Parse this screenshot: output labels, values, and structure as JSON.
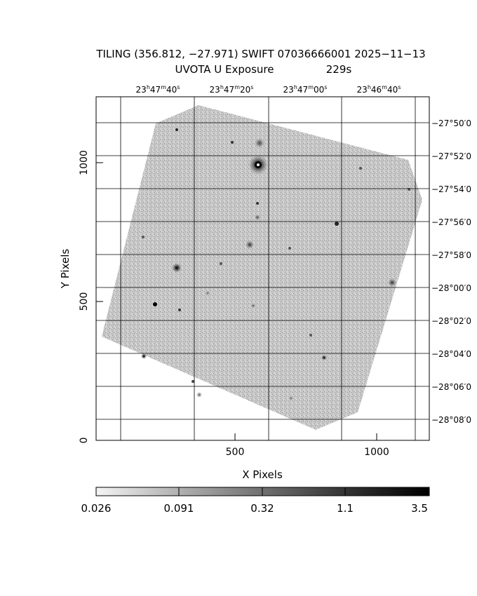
{
  "title": {
    "line1": "TILING (356.812, −27.971) SWIFT 07036666001 2025−11−13",
    "line2_left": "UVOTA U Exposure",
    "line2_right": "229s"
  },
  "axes": {
    "xlabel": "X Pixels",
    "ylabel": "Y Pixels",
    "xticks": [
      "500",
      "1000"
    ],
    "yticks": [
      "0",
      "500",
      "1000"
    ],
    "ra_ticks": [
      {
        "h": "23",
        "m": "47",
        "s": "40"
      },
      {
        "h": "23",
        "m": "47",
        "s": "20"
      },
      {
        "h": "23",
        "m": "47",
        "s": "00"
      },
      {
        "h": "23",
        "m": "46",
        "s": "40"
      }
    ],
    "dec_ticks": [
      "−27°50′0",
      "−27°52′0",
      "−27°54′0",
      "−27°56′0",
      "−27°58′0",
      "−28°00′0",
      "−28°02′0",
      "−28°04′0",
      "−28°06′0",
      "−28°08′0"
    ]
  },
  "colorbar": {
    "labels": [
      "0.026",
      "0.091",
      "0.32",
      "1.1",
      "3.5"
    ]
  }
}
